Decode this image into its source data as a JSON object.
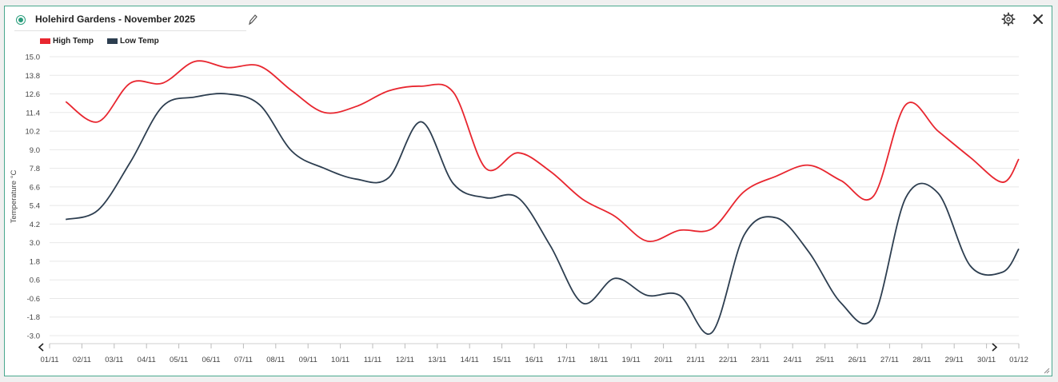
{
  "header": {
    "title": "Holehird Gardens - November 2025",
    "edit_icon": "pencil-icon",
    "settings_icon": "gear-icon",
    "close_icon": "close-icon"
  },
  "colors": {
    "accent": "#2a9d7c",
    "high": "#e8262f",
    "low": "#2d3e50",
    "grid": "#e8e8e8"
  },
  "chart_data": {
    "type": "line",
    "title": "",
    "ylabel": "Temperature °C",
    "xlabel": "",
    "ylim": [
      -3.0,
      15.0
    ],
    "yticks": [
      "15.0",
      "13.8",
      "12.6",
      "11.4",
      "10.2",
      "9.0",
      "7.8",
      "6.6",
      "5.4",
      "4.2",
      "3.0",
      "1.8",
      "0.6",
      "-0.6",
      "-1.8",
      "-3.0"
    ],
    "categories": [
      "01/11",
      "02/11",
      "03/11",
      "04/11",
      "05/11",
      "06/11",
      "07/11",
      "08/11",
      "09/11",
      "10/11",
      "11/11",
      "12/11",
      "13/11",
      "14/11",
      "15/11",
      "16/11",
      "17/11",
      "18/11",
      "19/11",
      "20/11",
      "21/11",
      "22/11",
      "23/11",
      "24/11",
      "25/11",
      "26/11",
      "27/11",
      "28/11",
      "29/11",
      "30/11",
      "01/12"
    ],
    "grid": true,
    "legend_position": "top-left",
    "series": [
      {
        "name": "High Temp",
        "x": [
          0.5,
          1.5,
          2.5,
          3.5,
          4.5,
          5.5,
          6.5,
          7.5,
          8.5,
          9.5,
          10.5,
          11.5,
          12.5,
          13.5,
          14.5,
          15.5,
          16.5,
          17.5,
          18.5,
          19.5,
          20.5,
          21.5,
          22.5,
          23.5,
          24.5,
          25.5,
          26.5,
          27.5,
          28.5,
          29.5,
          30.0
        ],
        "values": [
          12.1,
          10.8,
          13.3,
          13.3,
          14.7,
          14.3,
          14.4,
          12.8,
          11.4,
          11.8,
          12.8,
          13.1,
          12.7,
          7.8,
          8.8,
          7.6,
          5.8,
          4.7,
          3.1,
          3.8,
          3.9,
          6.3,
          7.3,
          8.0,
          7.0,
          6.0,
          11.9,
          10.2,
          8.5,
          6.9,
          8.4
        ]
      },
      {
        "name": "Low Temp",
        "x": [
          0.5,
          1.5,
          2.5,
          3.5,
          4.5,
          5.5,
          6.5,
          7.5,
          8.5,
          9.5,
          10.5,
          11.5,
          12.5,
          13.5,
          14.5,
          15.5,
          16.5,
          17.5,
          18.5,
          19.5,
          20.5,
          21.5,
          22.5,
          23.5,
          24.5,
          25.5,
          26.5,
          27.5,
          28.5,
          29.5,
          30.0
        ],
        "values": [
          4.5,
          5.1,
          8.2,
          11.8,
          12.4,
          12.6,
          11.9,
          8.9,
          7.8,
          7.1,
          7.2,
          10.8,
          6.8,
          5.9,
          5.9,
          2.8,
          -0.9,
          0.7,
          -0.4,
          -0.4,
          -2.8,
          3.5,
          4.6,
          2.4,
          -0.9,
          -1.8,
          5.9,
          6.2,
          1.5,
          1.1,
          2.6
        ]
      }
    ]
  }
}
